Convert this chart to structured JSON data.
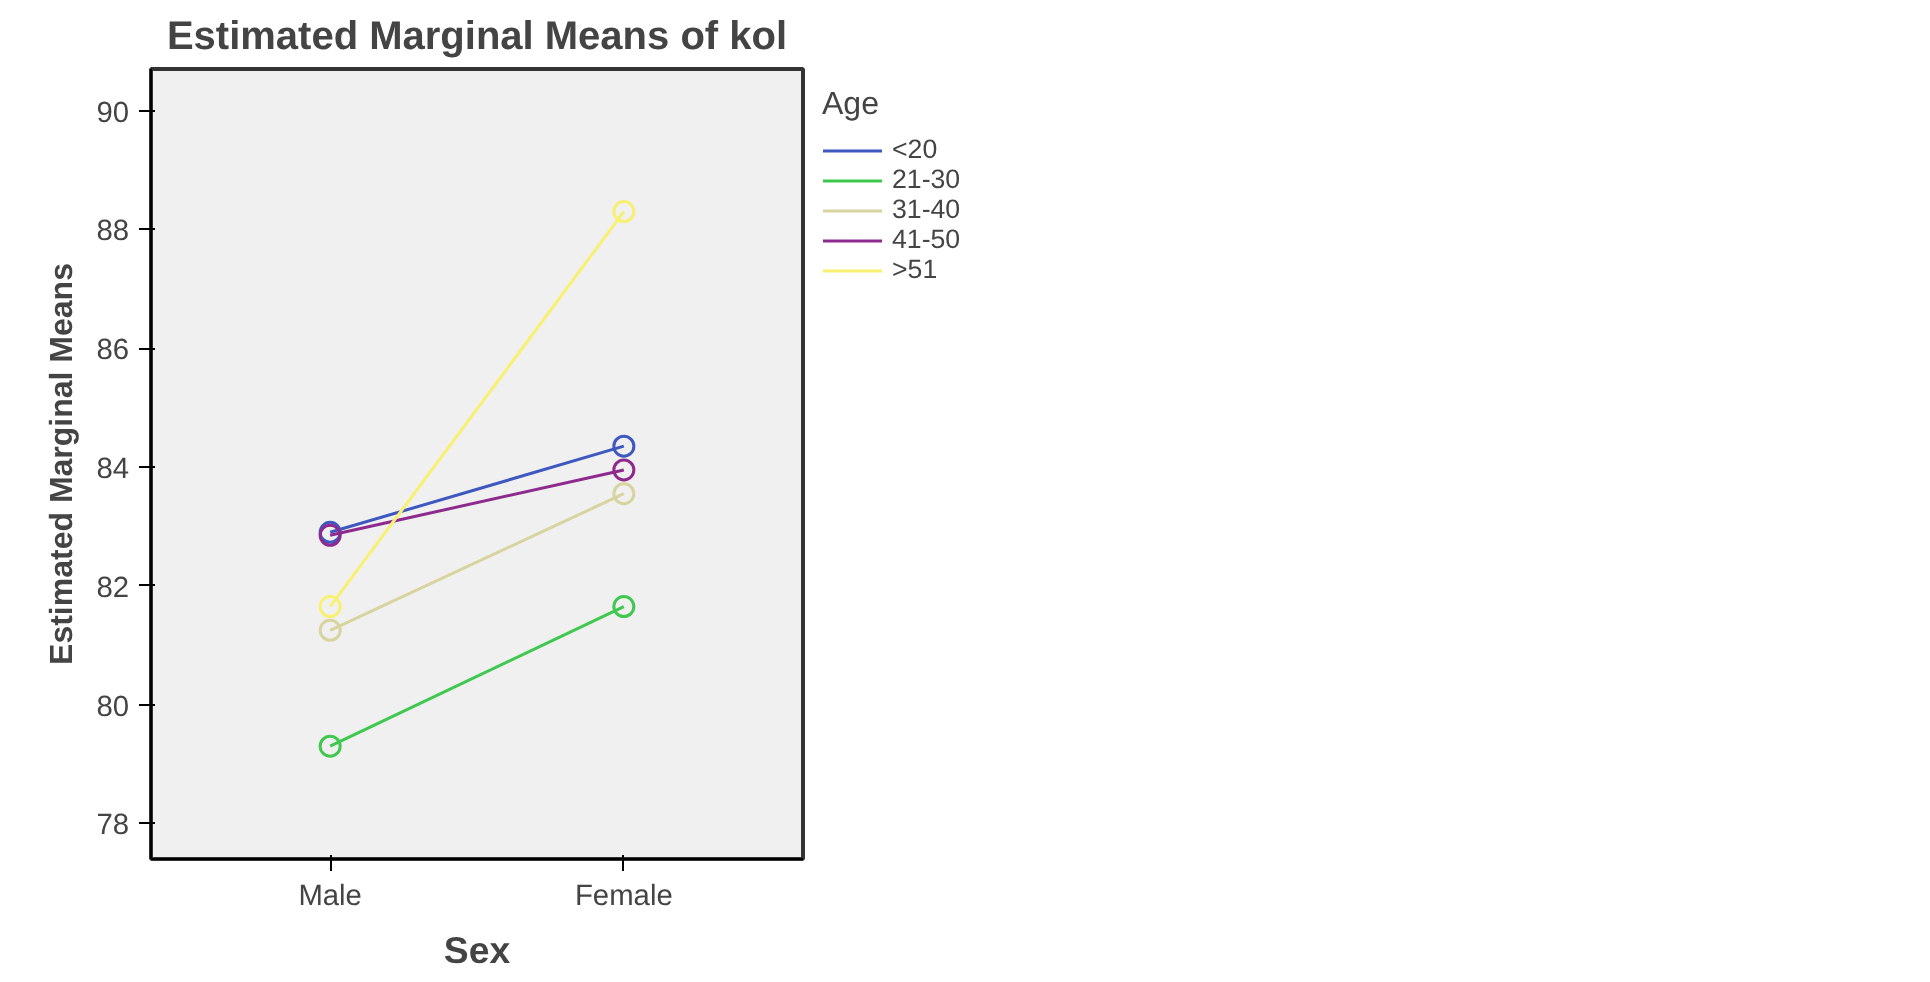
{
  "chart_data": {
    "type": "line",
    "title": "Estimated Marginal Means of kol",
    "xlabel": "Sex",
    "ylabel": "Estimated Marginal Means",
    "legend_title": "Age",
    "categories": [
      "Male",
      "Female"
    ],
    "series": [
      {
        "name": "<20",
        "color": "#3e58c0",
        "values": [
          82.9,
          84.35
        ]
      },
      {
        "name": "21-30",
        "color": "#3ec84e",
        "values": [
          79.3,
          81.65
        ]
      },
      {
        "name": "31-40",
        "color": "#d8d4a0",
        "values": [
          81.25,
          83.55
        ]
      },
      {
        "name": "41-50",
        "color": "#8e2a8e",
        "values": [
          82.85,
          83.95
        ]
      },
      {
        "name": ">51",
        "color": "#f8f070",
        "values": [
          81.65,
          88.3
        ]
      }
    ],
    "ylim": [
      77.4,
      90.7
    ],
    "yticks": [
      78,
      80,
      82,
      84,
      86,
      88,
      90
    ],
    "marker": "circle",
    "grid": false,
    "legend": "top right"
  }
}
